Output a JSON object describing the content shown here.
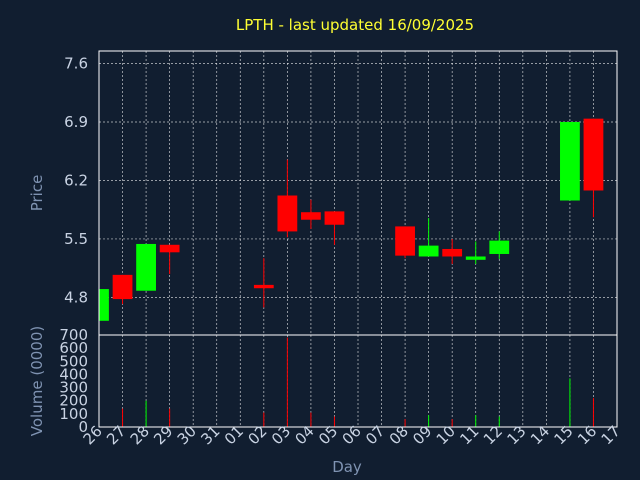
{
  "chart_data": {
    "type": "candlestick",
    "title": "LPTH - last updated 16/09/2025",
    "xlabel": "Day",
    "ylabel": "Price",
    "volume_label": "Volume (0000)",
    "categories": [
      "26",
      "27",
      "28",
      "29",
      "30",
      "31",
      "01",
      "02",
      "03",
      "04",
      "05",
      "06",
      "07",
      "08",
      "09",
      "10",
      "11",
      "12",
      "13",
      "14",
      "15",
      "16",
      "17"
    ],
    "price_ticks": [
      "4.8",
      "5.5",
      "6.2",
      "6.9",
      "7.6"
    ],
    "price_range": [
      4.35,
      7.75
    ],
    "volume_ticks": [
      "0",
      "100",
      "200",
      "300",
      "400",
      "500",
      "600",
      "700"
    ],
    "volume_range": [
      0,
      700
    ],
    "colors": {
      "up": "#00ff00",
      "down": "#ff0000"
    },
    "grid": true,
    "candles": [
      {
        "day": "26",
        "open": 4.52,
        "high": 4.93,
        "low": 4.52,
        "close": 4.9
      },
      {
        "day": "27",
        "open": 5.07,
        "high": 5.07,
        "low": 4.72,
        "close": 4.78
      },
      {
        "day": "28",
        "open": 4.88,
        "high": 5.44,
        "low": 4.88,
        "close": 5.44
      },
      {
        "day": "29",
        "open": 5.43,
        "high": 5.43,
        "low": 5.08,
        "close": 5.34
      },
      {
        "day": "02",
        "open": 4.95,
        "high": 5.27,
        "low": 4.68,
        "close": 4.91
      },
      {
        "day": "03",
        "open": 6.02,
        "high": 6.45,
        "low": 5.52,
        "close": 5.59
      },
      {
        "day": "04",
        "open": 5.82,
        "high": 5.97,
        "low": 5.62,
        "close": 5.73
      },
      {
        "day": "05",
        "open": 5.83,
        "high": 5.83,
        "low": 5.43,
        "close": 5.67
      },
      {
        "day": "08",
        "open": 5.65,
        "high": 5.65,
        "low": 5.27,
        "close": 5.3
      },
      {
        "day": "09",
        "open": 5.29,
        "high": 5.75,
        "low": 5.29,
        "close": 5.42
      },
      {
        "day": "10",
        "open": 5.38,
        "high": 5.5,
        "low": 5.2,
        "close": 5.29
      },
      {
        "day": "11",
        "open": 5.25,
        "high": 5.47,
        "low": 5.2,
        "close": 5.29
      },
      {
        "day": "12",
        "open": 5.32,
        "high": 5.59,
        "low": 5.26,
        "close": 5.48
      },
      {
        "day": "15",
        "open": 5.96,
        "high": 6.9,
        "low": 5.96,
        "close": 6.9
      },
      {
        "day": "16",
        "open": 6.94,
        "high": 6.94,
        "low": 5.76,
        "close": 6.08
      }
    ],
    "volume": [
      {
        "day": "27",
        "value": 140
      },
      {
        "day": "28",
        "value": 200
      },
      {
        "day": "29",
        "value": 140
      },
      {
        "day": "02",
        "value": 110
      },
      {
        "day": "03",
        "value": 680
      },
      {
        "day": "04",
        "value": 110
      },
      {
        "day": "05",
        "value": 80
      },
      {
        "day": "08",
        "value": 60
      },
      {
        "day": "09",
        "value": 90
      },
      {
        "day": "10",
        "value": 60
      },
      {
        "day": "11",
        "value": 90
      },
      {
        "day": "12",
        "value": 80
      },
      {
        "day": "15",
        "value": 370
      },
      {
        "day": "16",
        "value": 220
      }
    ]
  }
}
